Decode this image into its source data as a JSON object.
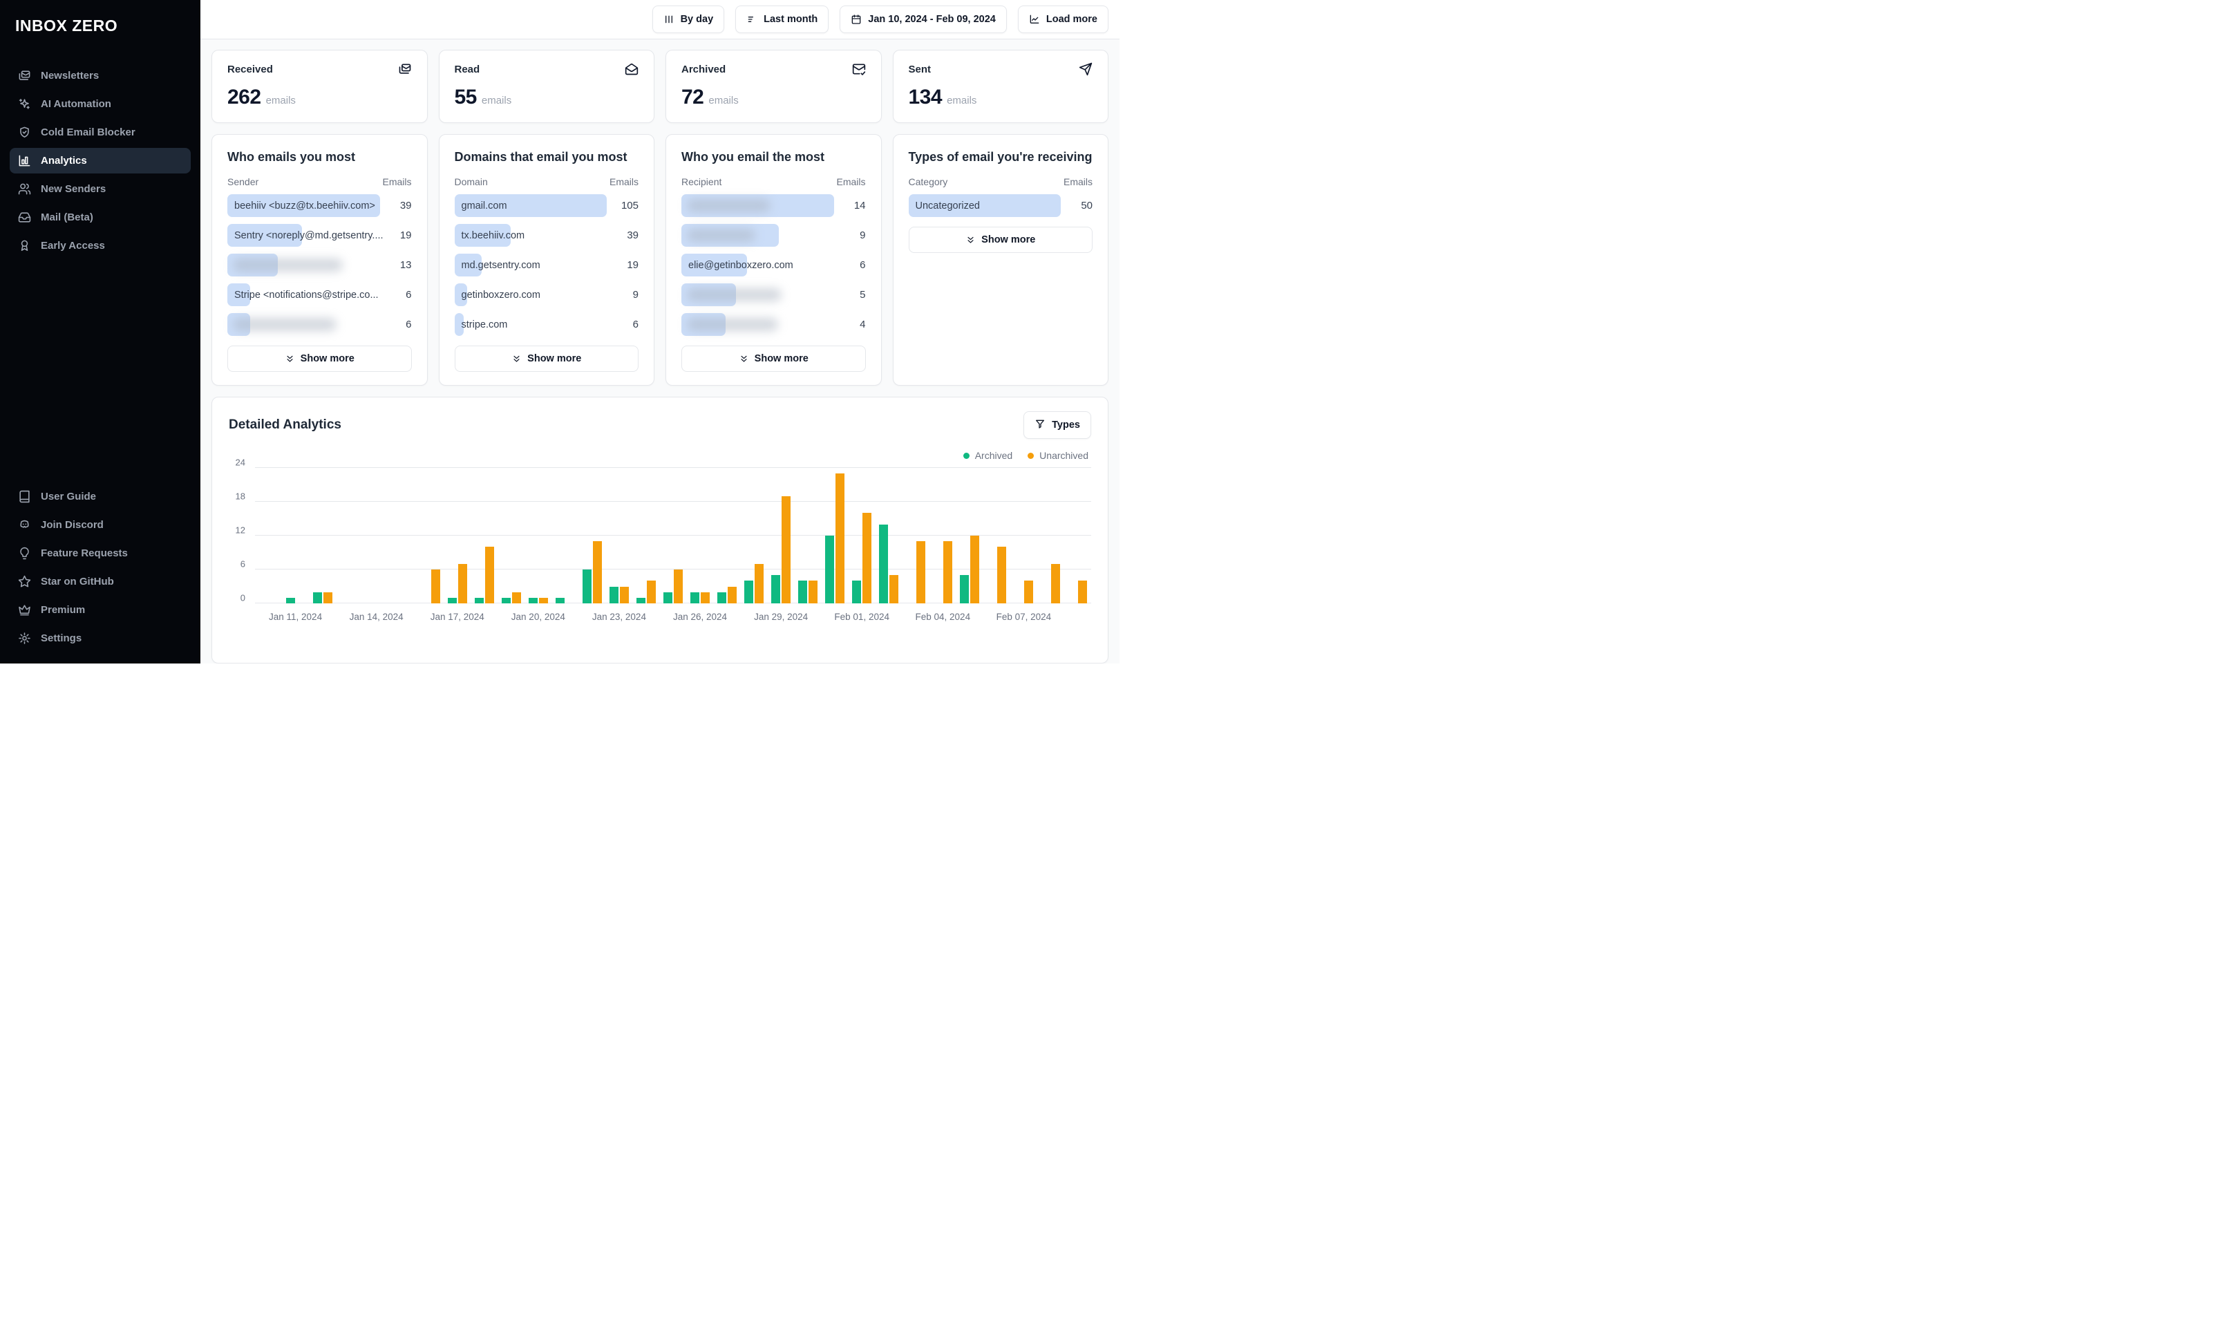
{
  "colors": {
    "bar_fill": "#cbddf8",
    "archived": "#10b981",
    "unarchived": "#f59e0b"
  },
  "sidebar": {
    "logo": "INBOX ZERO",
    "nav": [
      {
        "icon": "mails",
        "label": "Newsletters",
        "active": false
      },
      {
        "icon": "sparkles",
        "label": "AI Automation",
        "active": false
      },
      {
        "icon": "shield-check",
        "label": "Cold Email Blocker",
        "active": false
      },
      {
        "icon": "bar-chart",
        "label": "Analytics",
        "active": true
      },
      {
        "icon": "users",
        "label": "New Senders",
        "active": false
      },
      {
        "icon": "inbox",
        "label": "Mail (Beta)",
        "active": false
      },
      {
        "icon": "ribbon",
        "label": "Early Access",
        "active": false
      }
    ],
    "footer_nav": [
      {
        "icon": "book",
        "label": "User Guide"
      },
      {
        "icon": "discord",
        "label": "Join Discord"
      },
      {
        "icon": "lightbulb",
        "label": "Feature Requests"
      },
      {
        "icon": "star",
        "label": "Star on GitHub"
      },
      {
        "icon": "crown",
        "label": "Premium"
      },
      {
        "icon": "gear",
        "label": "Settings"
      }
    ]
  },
  "toolbar": {
    "buttons": [
      {
        "icon": "bars-vertical",
        "label": "By day"
      },
      {
        "icon": "filter-lines",
        "label": "Last month"
      },
      {
        "icon": "calendar",
        "label": "Jan 10, 2024 - Feb 09, 2024"
      },
      {
        "icon": "chart-line",
        "label": "Load more"
      }
    ]
  },
  "stats": [
    {
      "label": "Received",
      "value": "262",
      "unit": "emails",
      "icon": "mails"
    },
    {
      "label": "Read",
      "value": "55",
      "unit": "emails",
      "icon": "mail-open"
    },
    {
      "label": "Archived",
      "value": "72",
      "unit": "emails",
      "icon": "mail-check"
    },
    {
      "label": "Sent",
      "value": "134",
      "unit": "emails",
      "icon": "send"
    }
  ],
  "lists": [
    {
      "title": "Who emails you most",
      "col_label": "Sender",
      "value_label": "Emails",
      "show_more_label": "Show more",
      "rows": [
        {
          "label": "beehiiv <buzz@tx.beehiiv.com>",
          "value": "39",
          "bar": 100,
          "blurred": false,
          "blur": 0
        },
        {
          "label": "Sentry <noreply@md.getsentry....",
          "value": "19",
          "bar": 49,
          "blurred": false,
          "blur": 0
        },
        {
          "label": "",
          "value": "13",
          "bar": 33,
          "blurred": true,
          "blur": 72
        },
        {
          "label": "Stripe <notifications@stripe.co...",
          "value": "6",
          "bar": 15,
          "blurred": false,
          "blur": 0
        },
        {
          "label": "",
          "value": "6",
          "bar": 15,
          "blurred": true,
          "blur": 68
        }
      ]
    },
    {
      "title": "Domains that email you most",
      "col_label": "Domain",
      "value_label": "Emails",
      "show_more_label": "Show more",
      "rows": [
        {
          "label": "gmail.com",
          "value": "105",
          "bar": 100,
          "blurred": false,
          "blur": 0
        },
        {
          "label": "tx.beehiiv.com",
          "value": "39",
          "bar": 37,
          "blurred": false,
          "blur": 0
        },
        {
          "label": "md.getsentry.com",
          "value": "19",
          "bar": 18,
          "blurred": false,
          "blur": 0
        },
        {
          "label": "getinboxzero.com",
          "value": "9",
          "bar": 8.5,
          "blurred": false,
          "blur": 0
        },
        {
          "label": "stripe.com",
          "value": "6",
          "bar": 6,
          "blurred": false,
          "blur": 0
        }
      ]
    },
    {
      "title": "Who you email the most",
      "col_label": "Recipient",
      "value_label": "Emails",
      "show_more_label": "Show more",
      "rows": [
        {
          "label": "",
          "value": "14",
          "bar": 100,
          "blurred": true,
          "blur": 55
        },
        {
          "label": "",
          "value": "9",
          "bar": 64,
          "blurred": true,
          "blur": 45
        },
        {
          "label": "elie@getinboxzero.com",
          "value": "6",
          "bar": 43,
          "blurred": false,
          "blur": 0
        },
        {
          "label": "",
          "value": "5",
          "bar": 36,
          "blurred": true,
          "blur": 62
        },
        {
          "label": "",
          "value": "4",
          "bar": 29,
          "blurred": true,
          "blur": 60
        }
      ]
    },
    {
      "title": "Types of email you're receiving",
      "col_label": "Category",
      "value_label": "Emails",
      "show_more_label": "Show more",
      "rows": [
        {
          "label": "Uncategorized",
          "value": "50",
          "bar": 100,
          "blurred": false,
          "blur": 0
        }
      ]
    }
  ],
  "detailed": {
    "title": "Detailed Analytics",
    "filter_button": "Types",
    "legend": [
      {
        "label": "Archived",
        "color": "#10b981"
      },
      {
        "label": "Unarchived",
        "color": "#f59e0b"
      }
    ]
  },
  "chart_data": {
    "type": "bar",
    "title": "Detailed Analytics",
    "xlabel": "",
    "ylabel": "",
    "ylim": [
      0,
      24
    ],
    "y_ticks": [
      0,
      6,
      12,
      18,
      24
    ],
    "grid": true,
    "legend_position": "top-right",
    "x": [
      "Jan 10, 2024",
      "Jan 11, 2024",
      "Jan 12, 2024",
      "Jan 13, 2024",
      "Jan 14, 2024",
      "Jan 15, 2024",
      "Jan 16, 2024",
      "Jan 17, 2024",
      "Jan 18, 2024",
      "Jan 19, 2024",
      "Jan 20, 2024",
      "Jan 21, 2024",
      "Jan 22, 2024",
      "Jan 23, 2024",
      "Jan 24, 2024",
      "Jan 25, 2024",
      "Jan 26, 2024",
      "Jan 27, 2024",
      "Jan 28, 2024",
      "Jan 29, 2024",
      "Jan 30, 2024",
      "Jan 31, 2024",
      "Feb 01, 2024",
      "Feb 02, 2024",
      "Feb 03, 2024",
      "Feb 04, 2024",
      "Feb 05, 2024",
      "Feb 06, 2024",
      "Feb 07, 2024",
      "Feb 08, 2024",
      "Feb 09, 2024"
    ],
    "x_tick_labels": [
      "Jan 11, 2024",
      "Jan 14, 2024",
      "Jan 17, 2024",
      "Jan 20, 2024",
      "Jan 23, 2024",
      "Jan 26, 2024",
      "Jan 29, 2024",
      "Feb 01, 2024",
      "Feb 04, 2024",
      "Feb 07, 2024"
    ],
    "series": [
      {
        "name": "Archived",
        "color": "#10b981",
        "values": [
          0,
          1,
          2,
          0,
          0,
          0,
          0,
          1,
          1,
          1,
          1,
          1,
          6,
          3,
          1,
          2,
          2,
          2,
          4,
          5,
          4,
          12,
          4,
          14,
          0,
          0,
          5,
          0,
          0,
          0,
          0
        ]
      },
      {
        "name": "Unarchived",
        "color": "#f59e0b",
        "values": [
          0,
          0,
          2,
          0,
          0,
          0,
          6,
          7,
          10,
          2,
          1,
          0,
          11,
          3,
          4,
          6,
          2,
          3,
          7,
          19,
          4,
          23,
          16,
          5,
          11,
          11,
          12,
          10,
          4,
          7,
          4
        ]
      }
    ]
  }
}
